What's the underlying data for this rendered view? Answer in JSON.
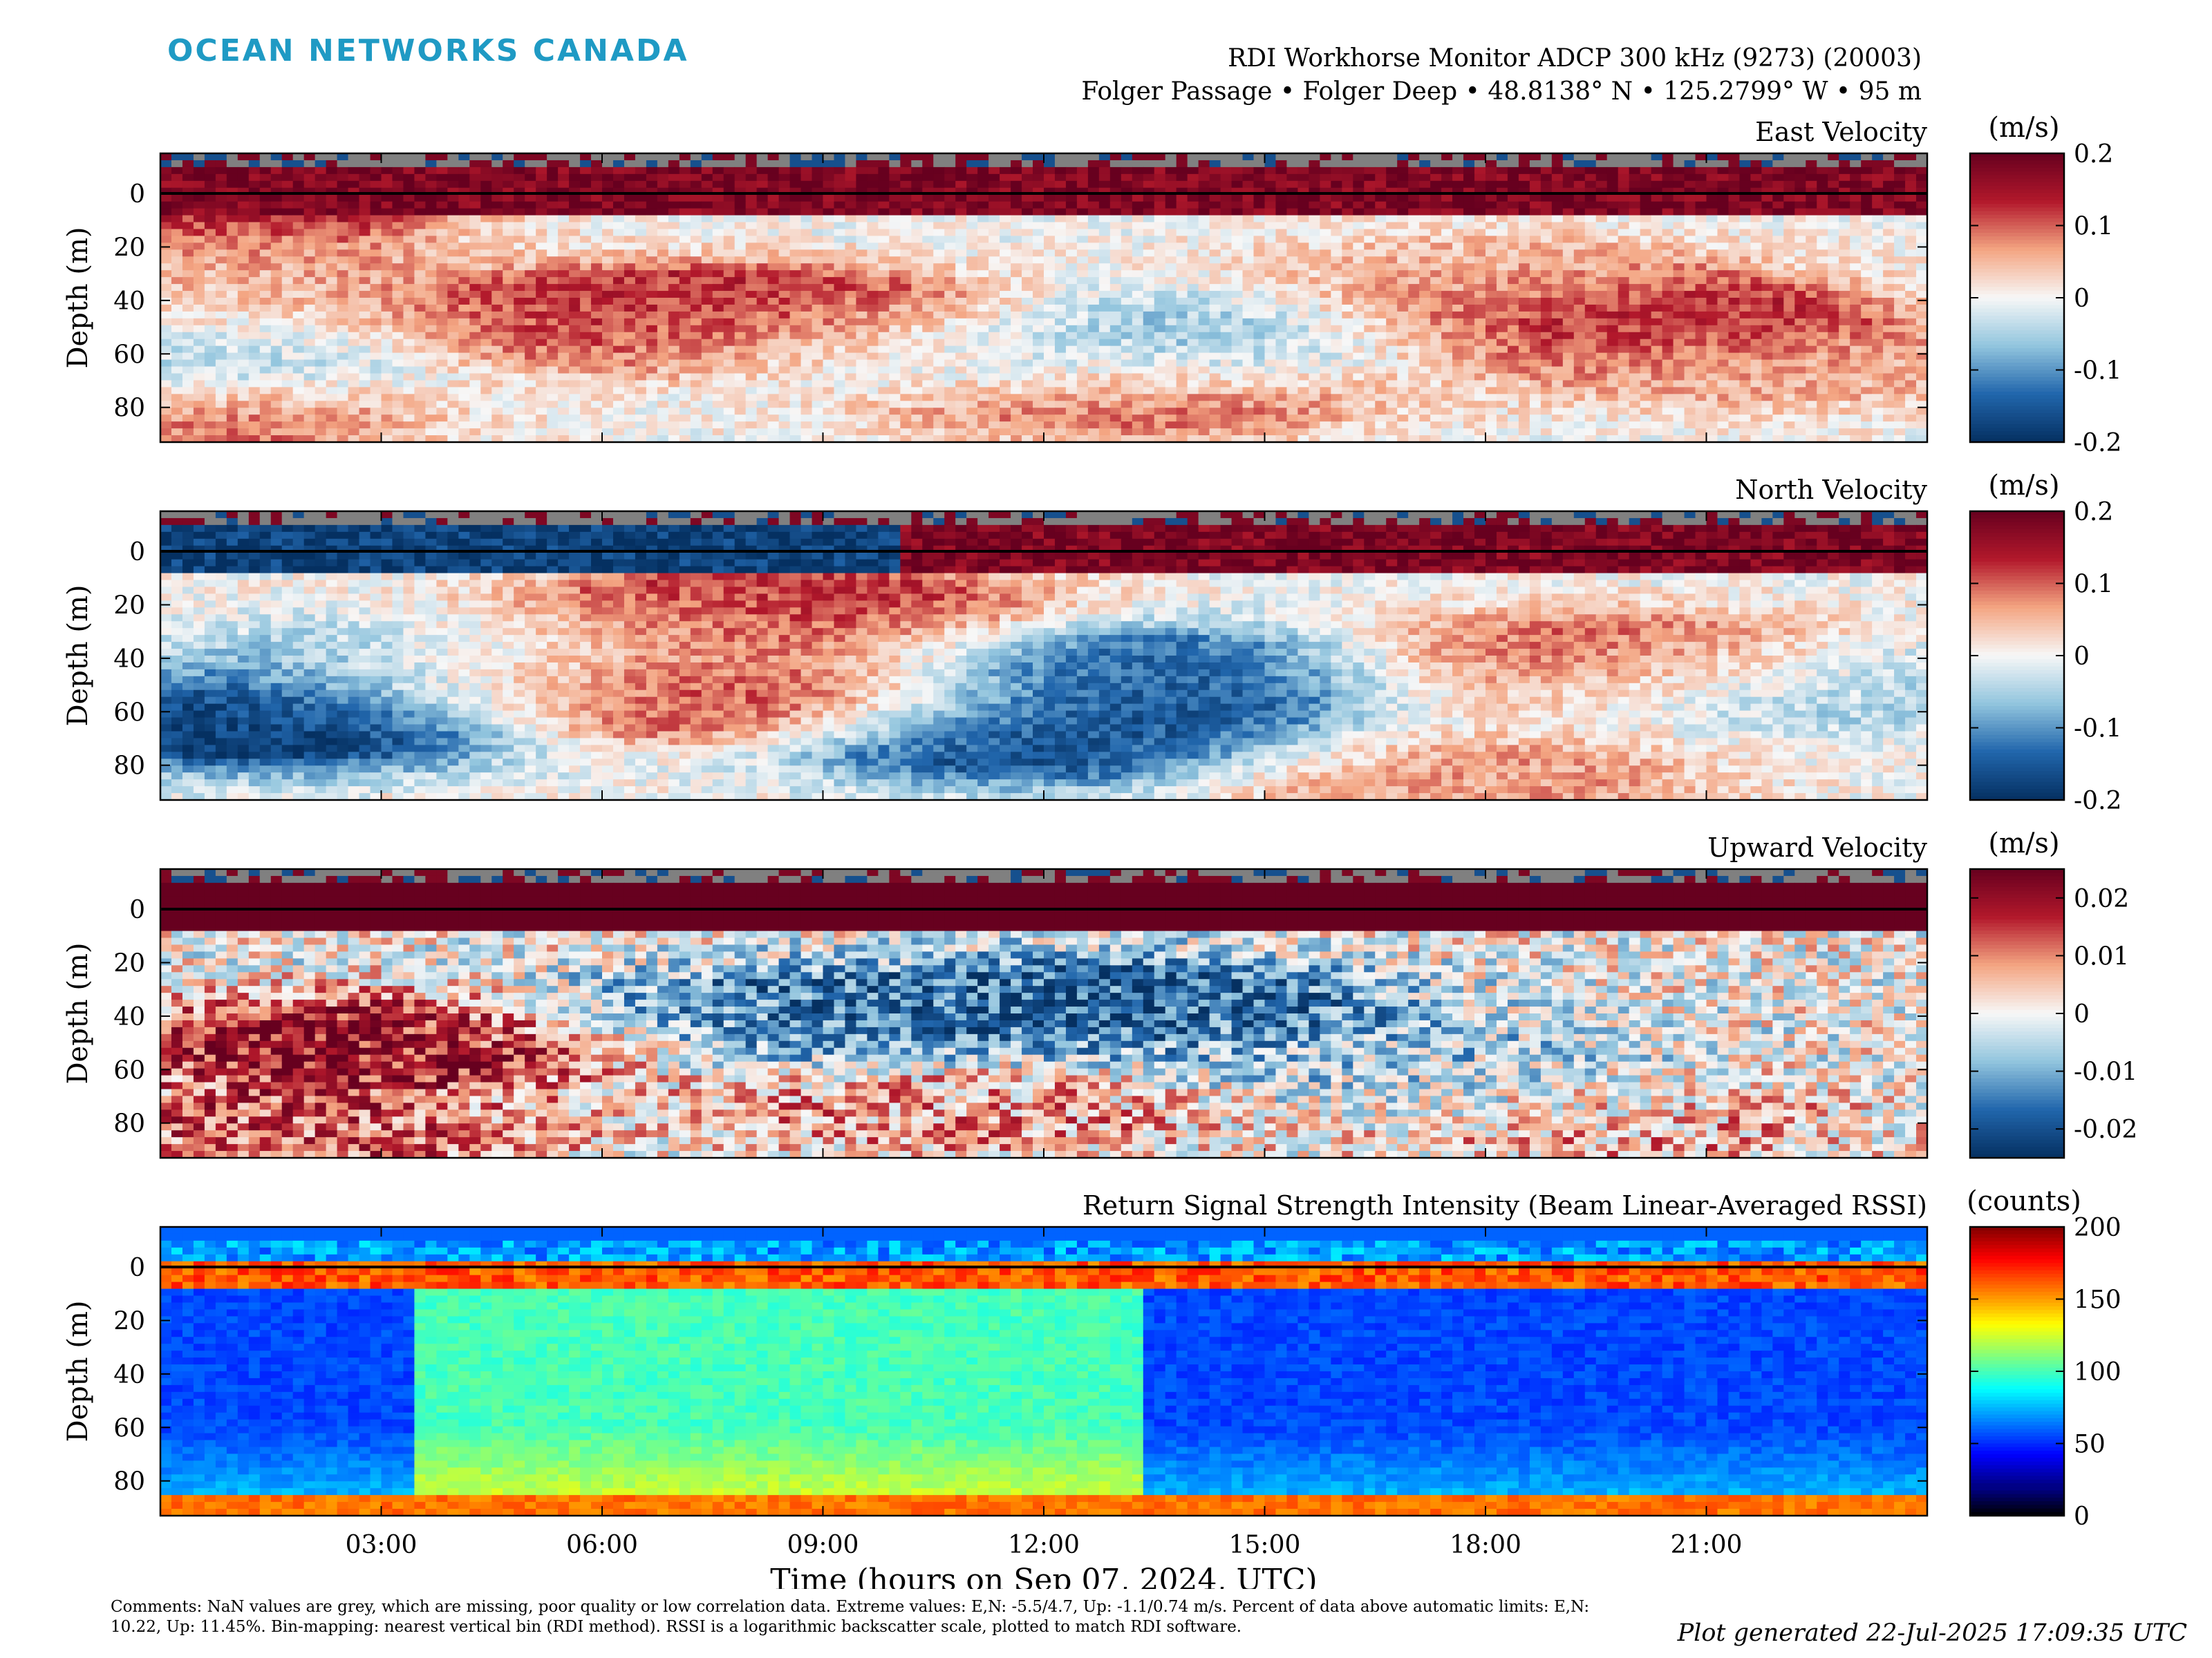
{
  "brand": "OCEAN NETWORKS CANADA",
  "header": {
    "instrument": "RDI Workhorse Monitor ADCP 300 kHz (9273) (20003)",
    "location": "Folger Passage • Folger Deep • 48.8138° N • 125.2799° W • 95 m"
  },
  "comments": "Comments: NaN values are grey, which are missing, poor quality or low correlation data. Extreme values: E,N: -5.5/4.7, Up: -1.1/0.74 m/s. Percent of data above automatic limits: E,N: 10.22, Up: 11.45%. Bin-mapping: nearest vertical bin (RDI method). RSSI is a logarithmic backscatter scale, plotted to match RDI software.",
  "generated": "Plot generated 22-Jul-2025 17:09:35 UTC",
  "colors": {
    "brand": "#1f9ac4",
    "nan": "#808080",
    "frame": "#000000"
  },
  "chart_data": [
    {
      "type": "heatmap",
      "title": "East Velocity",
      "ylabel": "Depth (m)",
      "yticks": [
        "0",
        "20",
        "40",
        "60",
        "80"
      ],
      "ylim": [
        -15,
        93
      ],
      "xlim": [
        0,
        24
      ],
      "colorbar_label": "(m/s)",
      "colorbar_ticks": [
        "0.2",
        "0.1",
        "0",
        "-0.1",
        "-0.2"
      ],
      "clim": [
        -0.2,
        0.2
      ],
      "colormap": "red-white-blue",
      "bands": [
        {
          "hour": 0,
          "depth": 0,
          "value": 0.2
        },
        {
          "hour": 0,
          "depth": 20,
          "value": 0.05
        },
        {
          "hour": 0,
          "depth": 45,
          "value": 0.06
        },
        {
          "hour": 0,
          "depth": 60,
          "value": -0.08
        },
        {
          "hour": 0,
          "depth": 85,
          "value": 0.09
        },
        {
          "hour": 7,
          "depth": 45,
          "value": 0.12
        },
        {
          "hour": 8,
          "depth": 50,
          "value": 0.14
        },
        {
          "hour": 10,
          "depth": 60,
          "value": -0.06
        },
        {
          "hour": 13,
          "depth": 75,
          "value": 0.1
        },
        {
          "hour": 14,
          "depth": 55,
          "value": -0.09
        },
        {
          "hour": 19.5,
          "depth": 47,
          "value": 0.16
        },
        {
          "hour": 18,
          "depth": 30,
          "value": 0.04
        },
        {
          "hour": 22,
          "depth": 65,
          "value": 0.05
        }
      ]
    },
    {
      "type": "heatmap",
      "title": "North Velocity",
      "ylabel": "Depth (m)",
      "yticks": [
        "0",
        "20",
        "40",
        "60",
        "80"
      ],
      "ylim": [
        -15,
        93
      ],
      "xlim": [
        0,
        24
      ],
      "colorbar_label": "(m/s)",
      "colorbar_ticks": [
        "0.2",
        "0.1",
        "0",
        "-0.1",
        "-0.2"
      ],
      "clim": [
        -0.2,
        0.2
      ],
      "colormap": "red-white-blue",
      "bands": [
        {
          "hour": 1.5,
          "depth": 65,
          "value": -0.18
        },
        {
          "hour": 4,
          "depth": 40,
          "value": -0.08
        },
        {
          "hour": 6.5,
          "depth": 40,
          "value": 0.1
        },
        {
          "hour": 7.5,
          "depth": 55,
          "value": 0.15
        },
        {
          "hour": 8.5,
          "depth": 20,
          "value": 0.12
        },
        {
          "hour": 12,
          "depth": 70,
          "value": -0.17
        },
        {
          "hour": 13.2,
          "depth": 45,
          "value": -0.15
        },
        {
          "hour": 19.5,
          "depth": 40,
          "value": 0.11
        },
        {
          "hour": 17.5,
          "depth": 85,
          "value": 0.07
        },
        {
          "hour": 22.5,
          "depth": 50,
          "value": -0.06
        }
      ]
    },
    {
      "type": "heatmap",
      "title": "Upward Velocity",
      "ylabel": "Depth (m)",
      "yticks": [
        "0",
        "20",
        "40",
        "60",
        "80"
      ],
      "ylim": [
        -15,
        93
      ],
      "xlim": [
        0,
        24
      ],
      "colorbar_label": "(m/s)",
      "colorbar_ticks": [
        "0.02",
        "0.01",
        "0",
        "-0.01",
        "-0.02"
      ],
      "clim": [
        -0.025,
        0.025
      ],
      "colormap": "red-white-blue",
      "bands": [
        {
          "hour": 3,
          "depth": 50,
          "value": 0.02
        },
        {
          "hour": 1.5,
          "depth": 85,
          "value": 0.012
        },
        {
          "hour": 8.5,
          "depth": 40,
          "value": -0.015
        },
        {
          "hour": 13,
          "depth": 35,
          "value": -0.018
        },
        {
          "hour": 11,
          "depth": 75,
          "value": 0.008
        },
        {
          "hour": 17,
          "depth": 60,
          "value": -0.006
        },
        {
          "hour": 20,
          "depth": 80,
          "value": 0.006
        }
      ]
    },
    {
      "type": "heatmap",
      "title": "Return Signal Strength Intensity (Beam Linear-Averaged RSSI)",
      "ylabel": "Depth (m)",
      "yticks": [
        "0",
        "20",
        "40",
        "60",
        "80"
      ],
      "ylim": [
        -15,
        93
      ],
      "xlim": [
        0,
        24
      ],
      "colorbar_label": "(counts)",
      "colorbar_ticks": [
        "200",
        "150",
        "100",
        "50",
        "0"
      ],
      "clim": [
        0,
        200
      ],
      "colormap": "jet",
      "summary": {
        "surface_counts": 160,
        "night_counts": 55,
        "day_counts": 100,
        "bottom_counts": 150,
        "day_start_hour": 3.5,
        "day_end_hour": 13.3
      }
    }
  ],
  "xaxis": {
    "label": "Time (hours on Sep 07, 2024, UTC)",
    "ticks": [
      "03:00",
      "06:00",
      "09:00",
      "12:00",
      "15:00",
      "18:00",
      "21:00"
    ],
    "tick_hours": [
      3,
      6,
      9,
      12,
      15,
      18,
      21
    ]
  }
}
